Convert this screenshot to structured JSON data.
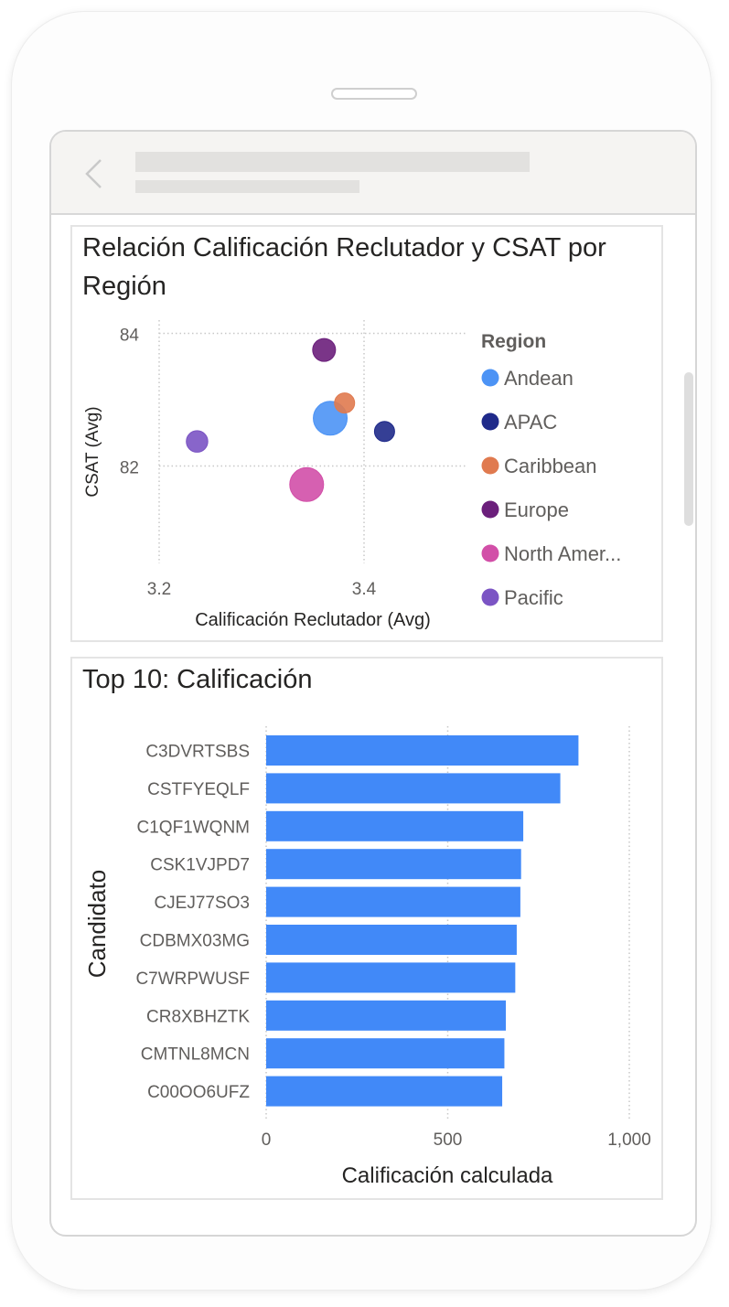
{
  "scatter": {
    "title": "Relación Calificación Reclutador y CSAT por Región",
    "chart_data": {
      "type": "scatter",
      "title": "Relación Calificación Reclutador y CSAT por Región",
      "xlabel": "Calificación Reclutador (Avg)",
      "ylabel": "CSAT (Avg)",
      "xlim": [
        3.2,
        3.5
      ],
      "ylim": [
        81.0,
        84.2
      ],
      "xticks": [
        3.2,
        3.4
      ],
      "xtick_labels": [
        "3.2",
        "3.4"
      ],
      "yticks": [
        82,
        84
      ],
      "ytick_labels": [
        "82",
        "84"
      ],
      "grid": true,
      "legend_title": "Region",
      "legend_position": "right",
      "series": [
        {
          "name": "Andean",
          "label": "Andean",
          "color": "#4C93F5",
          "x": 3.367,
          "y": 82.72,
          "size": 2.2
        },
        {
          "name": "APAC",
          "label": "APAC",
          "color": "#1F2A8A",
          "x": 3.42,
          "y": 82.52,
          "size": 1.2
        },
        {
          "name": "Caribbean",
          "label": "Caribbean",
          "color": "#E07A4F",
          "x": 3.381,
          "y": 82.95,
          "size": 1.2
        },
        {
          "name": "Europe",
          "label": "Europe",
          "color": "#6B1F7B",
          "x": 3.361,
          "y": 83.75,
          "size": 1.4
        },
        {
          "name": "North America",
          "label": "North Amer...",
          "color": "#D24FA8",
          "x": 3.344,
          "y": 81.72,
          "size": 2.2
        },
        {
          "name": "Pacific",
          "label": "Pacific",
          "color": "#7B54C4",
          "x": 3.237,
          "y": 82.37,
          "size": 1.3
        }
      ]
    }
  },
  "bars": {
    "title": "Top 10: Calificación",
    "chart_data": {
      "type": "bar",
      "orientation": "horizontal",
      "title": "Top 10: Calificación",
      "xlabel": "Calificación calculada",
      "ylabel": "Candidato",
      "xlim": [
        0,
        1000
      ],
      "xticks": [
        0,
        500,
        1000
      ],
      "xtick_labels": [
        "0",
        "500",
        "1,000"
      ],
      "grid": true,
      "color": "#4189F8",
      "categories": [
        "C3DVRTSBS",
        "CSTFYEQLF",
        "C1QF1WQNM",
        "CSK1VJPD7",
        "CJEJ77SO3",
        "CDBMX03MG",
        "C7WRPWUSF",
        "CR8XBHZTK",
        "CMTNL8MCN",
        "C00OO6UFZ"
      ],
      "values": [
        860,
        810,
        708,
        702,
        700,
        690,
        686,
        660,
        656,
        650
      ]
    }
  }
}
